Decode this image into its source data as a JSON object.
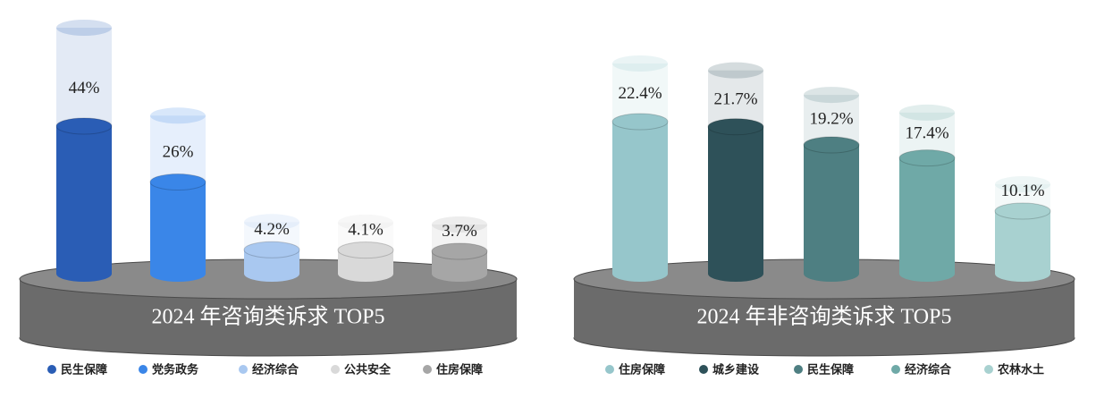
{
  "chart_data": [
    {
      "type": "bar",
      "title": "2024 年咨询类诉求 TOP5",
      "categories": [
        "民生保障",
        "党务政务",
        "经济综合",
        "公共安全",
        "住房保障"
      ],
      "values": [
        44,
        26,
        4.2,
        4.1,
        3.7
      ],
      "value_labels": [
        "44%",
        "26%",
        "4.2%",
        "4.1%",
        "3.7%"
      ],
      "colors": [
        "#2a5db5",
        "#3a86e8",
        "#a9c8f0",
        "#d9d9d9",
        "#a6a6a6"
      ]
    },
    {
      "type": "bar",
      "title": "2024 年非咨询类诉求 TOP5",
      "categories": [
        "住房保障",
        "城乡建设",
        "民生保障",
        "经济综合",
        "农林水土"
      ],
      "values": [
        22.4,
        21.7,
        19.2,
        17.4,
        10.1
      ],
      "value_labels": [
        "22.4%",
        "21.7%",
        "19.2%",
        "17.4%",
        "10.1%"
      ],
      "colors": [
        "#96c6cb",
        "#2e5159",
        "#4e7f82",
        "#6fa9a7",
        "#a8d1d0"
      ]
    }
  ]
}
